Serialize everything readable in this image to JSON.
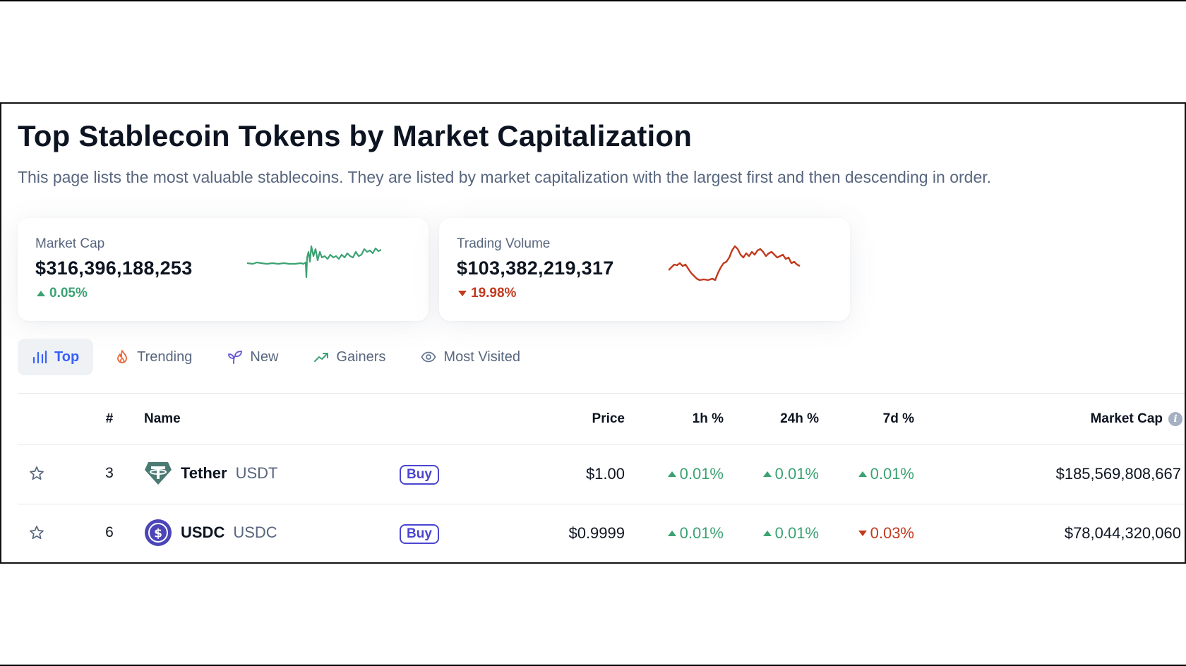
{
  "page": {
    "title": "Top Stablecoin Tokens by Market Capitalization",
    "subtitle": "This page lists the most valuable stablecoins. They are listed by market capitalization with the largest first and then descending in order."
  },
  "stats": [
    {
      "label": "Market Cap",
      "value": "$316,396,188,253",
      "change": "0.05%",
      "direction": "up",
      "spark_color": "#3ba272"
    },
    {
      "label": "Trading Volume",
      "value": "$103,382,219,317",
      "change": "19.98%",
      "direction": "down",
      "spark_color": "#c23a1e"
    }
  ],
  "tabs": [
    {
      "label": "Top",
      "icon": "bar-chart-icon",
      "active": true
    },
    {
      "label": "Trending",
      "icon": "flame-icon",
      "active": false
    },
    {
      "label": "New",
      "icon": "sprout-icon",
      "active": false
    },
    {
      "label": "Gainers",
      "icon": "trending-up-icon",
      "active": false
    },
    {
      "label": "Most Visited",
      "icon": "eye-icon",
      "active": false
    }
  ],
  "table": {
    "headers": {
      "rank": "#",
      "name": "Name",
      "price": "Price",
      "h1": "1h %",
      "h24": "24h %",
      "d7": "7d %",
      "market_cap": "Market Cap"
    },
    "rows": [
      {
        "rank": "3",
        "name": "Tether",
        "symbol": "USDT",
        "buy": "Buy",
        "icon": "tether-icon",
        "price": "$1.00",
        "h1": "0.01%",
        "h1_dir": "up",
        "h24": "0.01%",
        "h24_dir": "up",
        "d7": "0.01%",
        "d7_dir": "up",
        "market_cap": "$185,569,808,667"
      },
      {
        "rank": "6",
        "name": "USDC",
        "symbol": "USDC",
        "buy": "Buy",
        "icon": "usdc-icon",
        "price": "$0.9999",
        "h1": "0.01%",
        "h1_dir": "up",
        "h24": "0.01%",
        "h24_dir": "up",
        "d7": "0.03%",
        "d7_dir": "down",
        "market_cap": "$78,044,320,060"
      }
    ]
  },
  "colors": {
    "up": "#3ba272",
    "down": "#c23a1e",
    "accent": "#3861fb",
    "buy": "#4b45d1"
  }
}
